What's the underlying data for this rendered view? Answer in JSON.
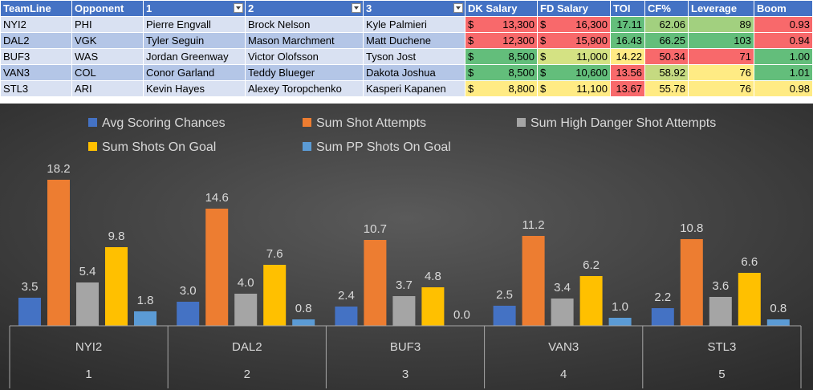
{
  "table": {
    "headers": [
      "TeamLine",
      "Opponent",
      "1",
      "2",
      "3",
      "DK Salary",
      "FD Salary",
      "TOI",
      "CF%",
      "Leverage",
      "Boom"
    ],
    "filter_columns": [
      2,
      3,
      4
    ],
    "rows": [
      {
        "teamline": "NYI2",
        "opponent": "PHI",
        "p1": "Pierre Engvall",
        "p2": "Brock Nelson",
        "p3": "Kyle Palmieri",
        "dk_sym": "$",
        "dk": "13,300",
        "fd_sym": "$",
        "fd": "16,300",
        "toi": "17.11",
        "cf": "62.06",
        "leverage": "89",
        "boom": "0.93"
      },
      {
        "teamline": "DAL2",
        "opponent": "VGK",
        "p1": "Tyler Seguin",
        "p2": "Mason Marchment",
        "p3": "Matt Duchene",
        "dk_sym": "$",
        "dk": "12,300",
        "fd_sym": "$",
        "fd": "15,900",
        "toi": "16.43",
        "cf": "66.25",
        "leverage": "103",
        "boom": "0.94"
      },
      {
        "teamline": "BUF3",
        "opponent": "WAS",
        "p1": "Jordan Greenway",
        "p2": "Victor Olofsson",
        "p3": "Tyson Jost",
        "dk_sym": "$",
        "dk": "8,500",
        "fd_sym": "$",
        "fd": "11,000",
        "toi": "14.22",
        "cf": "50.34",
        "leverage": "71",
        "boom": "1.00"
      },
      {
        "teamline": "VAN3",
        "opponent": "COL",
        "p1": "Conor Garland",
        "p2": "Teddy Blueger",
        "p3": "Dakota Joshua",
        "dk_sym": "$",
        "dk": "8,500",
        "fd_sym": "$",
        "fd": "10,600",
        "toi": "13.56",
        "cf": "58.92",
        "leverage": "76",
        "boom": "1.01"
      },
      {
        "teamline": "STL3",
        "opponent": "ARI",
        "p1": "Kevin Hayes",
        "p2": "Alexey Toropchenko",
        "p3": "Kasperi Kapanen",
        "dk_sym": "$",
        "dk": "8,800",
        "fd_sym": "$",
        "fd": "11,100",
        "toi": "13.67",
        "cf": "55.78",
        "leverage": "76",
        "boom": "0.98"
      }
    ],
    "cell_colors": {
      "dk": [
        "#f8696b",
        "#f8696b",
        "#63be7b",
        "#63be7b",
        "#ffeb84"
      ],
      "fd": [
        "#f8696b",
        "#f8696b",
        "#d4e283",
        "#63be7b",
        "#ffeb84"
      ],
      "toi": [
        "#63be7b",
        "#63be7b",
        "#ffeb84",
        "#f8696b",
        "#f8696b"
      ],
      "cf": [
        "#a2d07f",
        "#63be7b",
        "#f8696b",
        "#c5da81",
        "#ffeb84"
      ],
      "leverage": [
        "#a2d07f",
        "#63be7b",
        "#f8696b",
        "#ffeb84",
        "#ffeb84"
      ],
      "boom": [
        "#f8696b",
        "#f8696b",
        "#63be7b",
        "#63be7b",
        "#ffeb84"
      ]
    }
  },
  "chart_data": {
    "type": "bar",
    "categories": [
      "NYI2",
      "DAL2",
      "BUF3",
      "VAN3",
      "STL3"
    ],
    "category_sublabels": [
      "1",
      "2",
      "3",
      "4",
      "5"
    ],
    "series": [
      {
        "name": "Avg Scoring Chances",
        "values": [
          3.5,
          3.0,
          2.4,
          2.5,
          2.2
        ],
        "color": "#4472c4"
      },
      {
        "name": "Sum Shot Attempts",
        "values": [
          18.2,
          14.6,
          10.7,
          11.2,
          10.8
        ],
        "color": "#ed7d31"
      },
      {
        "name": "Sum High Danger Shot Attempts",
        "values": [
          5.4,
          4.0,
          3.7,
          3.4,
          3.6
        ],
        "color": "#a5a5a5"
      },
      {
        "name": "Sum Shots On Goal",
        "values": [
          9.8,
          7.6,
          4.8,
          6.2,
          6.6
        ],
        "color": "#ffc000"
      },
      {
        "name": "Sum PP Shots On Goal",
        "values": [
          1.8,
          0.8,
          0.0,
          1.0,
          0.8
        ],
        "color": "#5b9bd5"
      }
    ],
    "title": "",
    "xlabel": "",
    "ylabel": "",
    "ylim": [
      0,
      20
    ],
    "grid": false,
    "legend_position": "top",
    "background": "#404040"
  }
}
